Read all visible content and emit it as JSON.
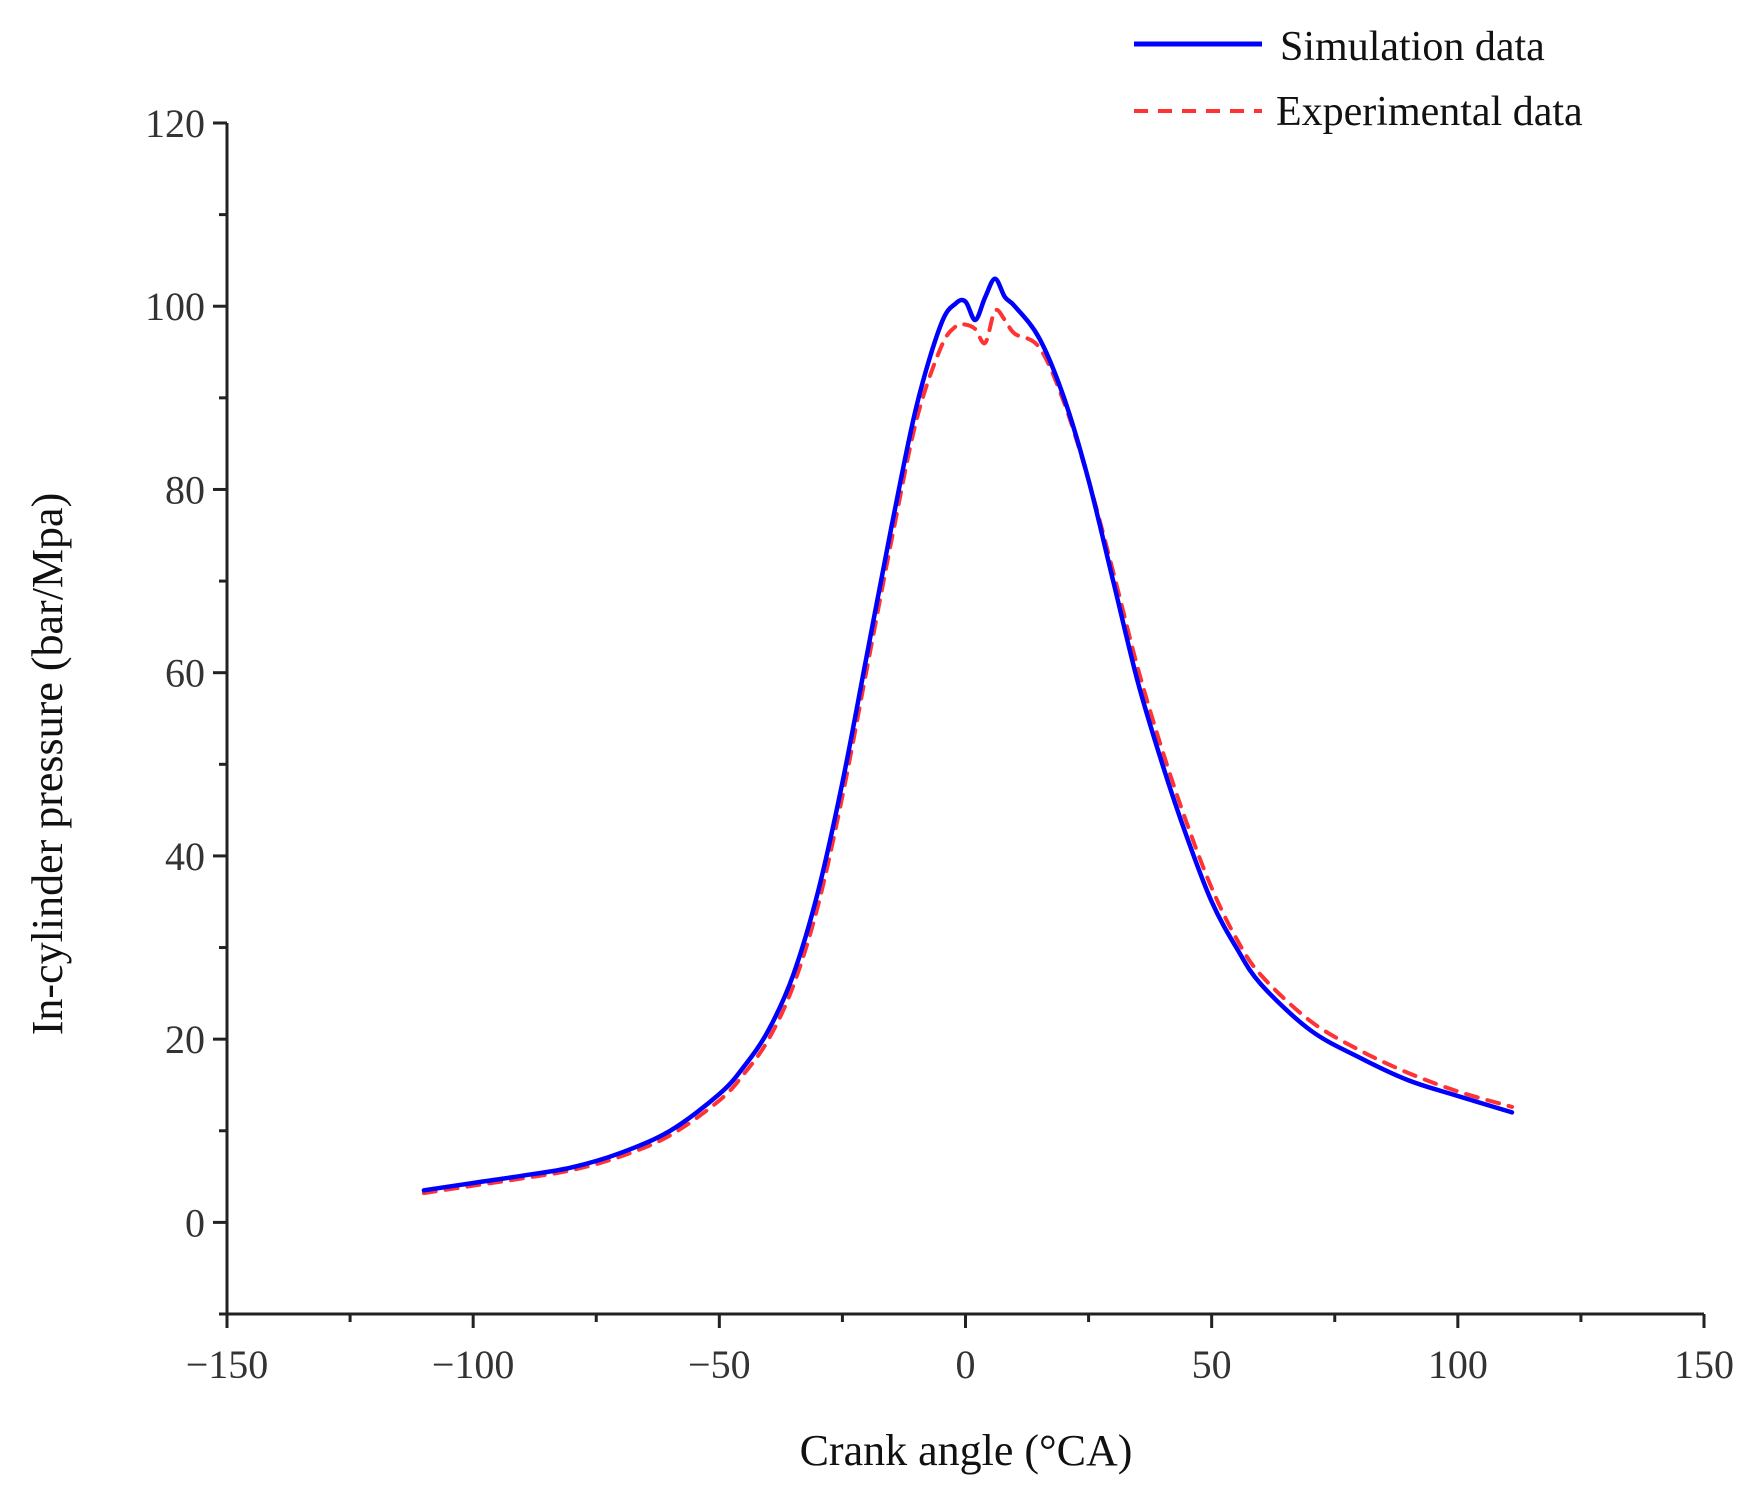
{
  "chart_data": {
    "type": "line",
    "title": "",
    "xlabel": "Crank angle (°CA)",
    "ylabel": "In-cylinder pressure (bar/Mpa)",
    "xlim": [
      -150,
      150
    ],
    "ylim": [
      -10,
      120
    ],
    "x_ticks": [
      -150,
      -100,
      -50,
      0,
      50,
      100,
      150
    ],
    "x_tick_labels": [
      "−150",
      "−100",
      "−50",
      "0",
      "50",
      "100",
      "150"
    ],
    "y_ticks": [
      0,
      20,
      40,
      60,
      80,
      100,
      120
    ],
    "y_tick_labels": [
      "0",
      "20",
      "40",
      "60",
      "80",
      "100",
      "120"
    ],
    "grid": false,
    "legend_position": "top-right",
    "series": [
      {
        "name": "Simulation data",
        "color": "#0000ff",
        "style": "solid",
        "x": [
          -110,
          -100,
          -90,
          -80,
          -70,
          -60,
          -50,
          -45,
          -40,
          -35,
          -30,
          -25,
          -20,
          -15,
          -10,
          -5,
          -2,
          0,
          2,
          4,
          6,
          8,
          10,
          15,
          20,
          25,
          30,
          35,
          40,
          45,
          50,
          55,
          60,
          70,
          80,
          90,
          100,
          111
        ],
        "values": [
          3.5,
          4.3,
          5.1,
          6.0,
          7.6,
          10.0,
          14.0,
          17.0,
          21.0,
          27.0,
          36.0,
          48.0,
          62.0,
          76.0,
          89.0,
          98.0,
          100.3,
          100.5,
          98.5,
          101.0,
          103.0,
          101.0,
          100.0,
          96.5,
          90.0,
          81.0,
          70.0,
          59.0,
          50.0,
          42.0,
          35.0,
          30.0,
          26.0,
          21.0,
          18.0,
          15.5,
          13.8,
          12.0
        ]
      },
      {
        "name": "Experimental data",
        "color": "#ff3333",
        "style": "dashed",
        "x": [
          -110,
          -100,
          -90,
          -80,
          -70,
          -60,
          -50,
          -45,
          -40,
          -35,
          -30,
          -25,
          -20,
          -15,
          -10,
          -5,
          -2,
          0,
          2,
          4,
          6,
          8,
          10,
          15,
          20,
          25,
          30,
          35,
          40,
          45,
          50,
          55,
          60,
          70,
          80,
          90,
          100,
          111
        ],
        "values": [
          3.2,
          4.0,
          4.8,
          5.7,
          7.2,
          9.5,
          13.3,
          16.2,
          20.0,
          25.8,
          34.5,
          46.5,
          60.5,
          74.5,
          87.5,
          95.5,
          97.8,
          98.0,
          97.5,
          96.0,
          99.5,
          98.5,
          97.0,
          95.5,
          89.5,
          81.0,
          71.0,
          60.5,
          51.5,
          43.5,
          36.5,
          31.0,
          27.0,
          22.0,
          18.8,
          16.3,
          14.3,
          12.6
        ]
      }
    ]
  }
}
